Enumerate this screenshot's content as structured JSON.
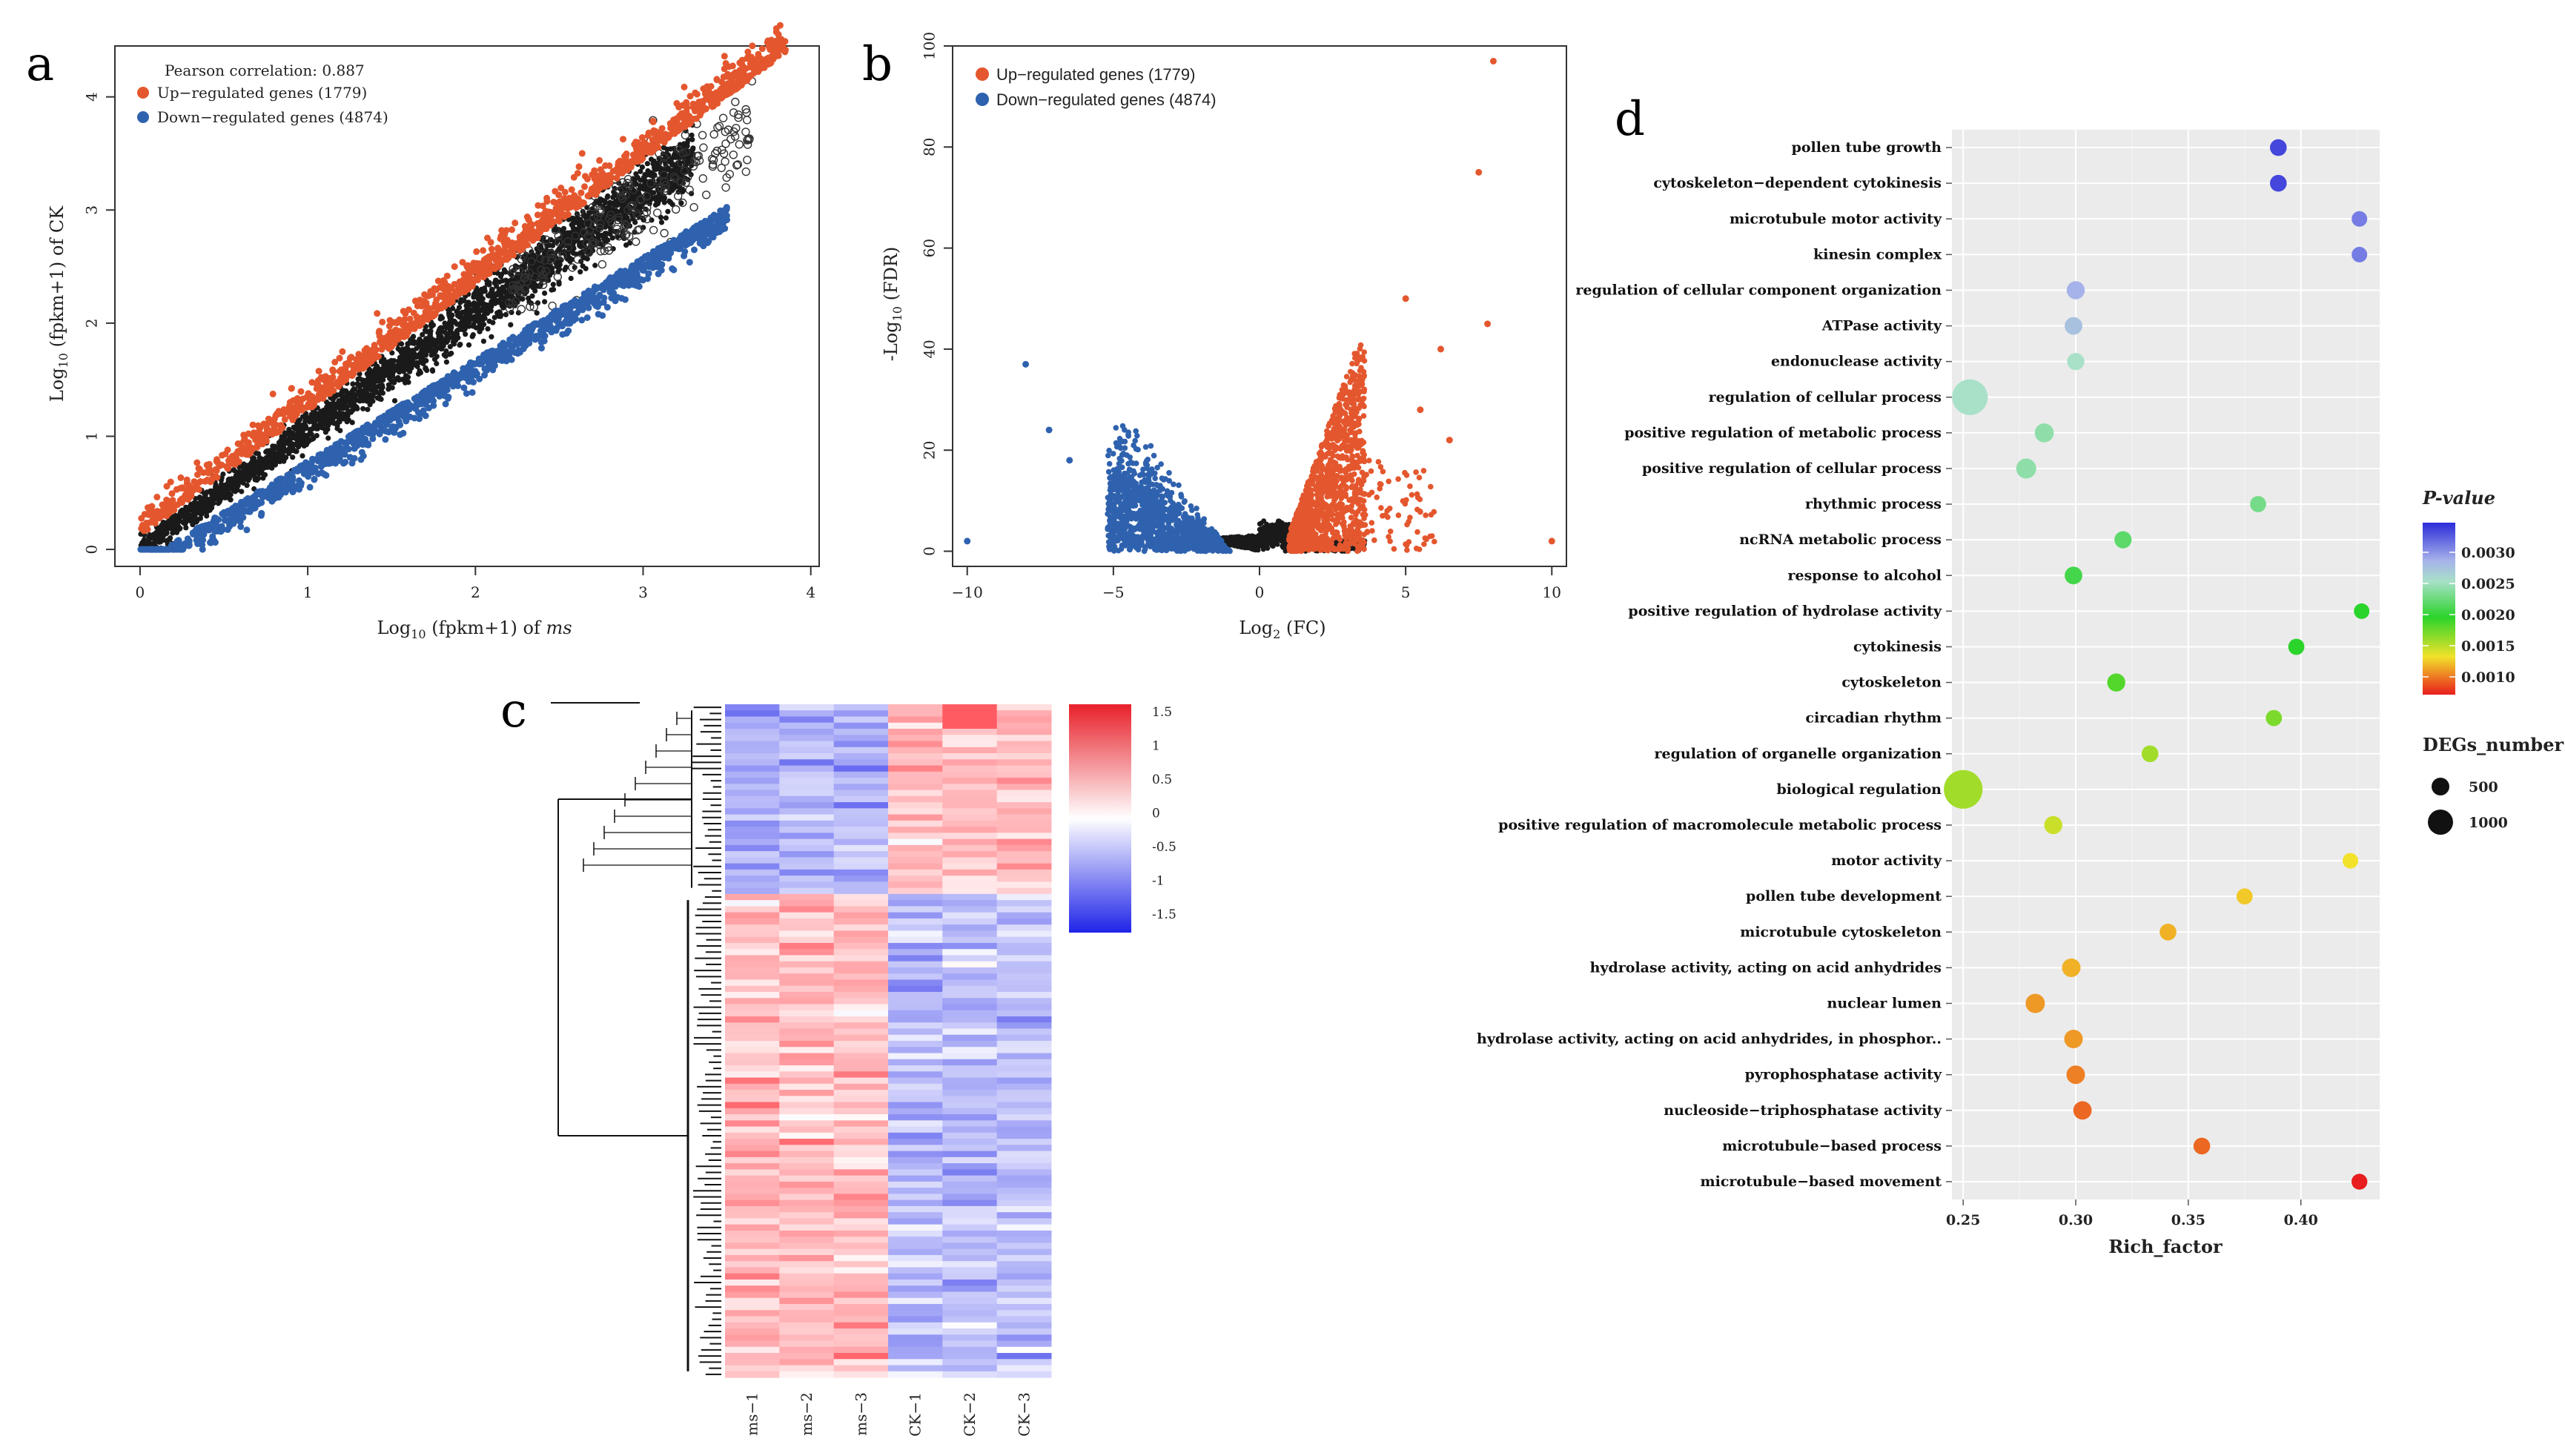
{
  "panels": {
    "a": "a",
    "b": "b",
    "c": "c",
    "d": "d"
  },
  "colors": {
    "up": "#e4572e",
    "down": "#2f62ae",
    "ns": "#1a1a1a",
    "heat_high": "#e8202a",
    "heat_mid": "#ffffff",
    "heat_low": "#1f24e8",
    "ggplot_bg": "#ebebeb"
  },
  "chart_data": [
    {
      "id": "a",
      "type": "scatter",
      "title": "",
      "xlabel_prefix": "Log",
      "xlabel_sub": "10",
      "xlabel_mid": " (fpkm+1) of ",
      "xlabel_em": "ms",
      "ylabel_prefix": "Log",
      "ylabel_sub": "10",
      "ylabel_mid": " (fpkm+1) of CK",
      "xlim": [
        -0.15,
        4.05
      ],
      "ylim": [
        -0.15,
        4.45
      ],
      "xticks": [
        0,
        1,
        2,
        3,
        4
      ],
      "yticks": [
        0,
        1,
        2,
        3,
        4
      ],
      "annotation": "Pearson correlation: 0.887",
      "legend": [
        {
          "label": "Up−regulated genes (1779)",
          "color": "#e4572e"
        },
        {
          "label": "Down−regulated genes (4874)",
          "color": "#2f62ae"
        }
      ],
      "legend_position": "top-left",
      "up_count": 1779,
      "down_count": 4874
    },
    {
      "id": "b",
      "type": "scatter",
      "title": "",
      "xlabel_prefix": "Log",
      "xlabel_sub": "2",
      "xlabel_mid": " (FC)",
      "ylabel_prefix": "-Log",
      "ylabel_sub": "10",
      "ylabel_mid": " (FDR)",
      "xlim": [
        -10.5,
        10.5
      ],
      "ylim": [
        -3,
        100
      ],
      "xticks": [
        -10,
        -5,
        0,
        5,
        10
      ],
      "yticks": [
        0,
        20,
        40,
        60,
        80,
        100
      ],
      "legend": [
        {
          "label": "Up−regulated genes (1779)",
          "color": "#e4572e"
        },
        {
          "label": "Down−regulated genes (4874)",
          "color": "#2f62ae"
        }
      ],
      "legend_position": "top-left",
      "outliers_up": [
        [
          8,
          97
        ],
        [
          7.5,
          75
        ],
        [
          7.8,
          45
        ],
        [
          5,
          50
        ],
        [
          6.2,
          40
        ],
        [
          10,
          2
        ],
        [
          6.5,
          22
        ],
        [
          5.5,
          28
        ]
      ],
      "outliers_down": [
        [
          -10,
          2
        ],
        [
          -8,
          37
        ],
        [
          -7.2,
          24
        ],
        [
          -6.5,
          18
        ]
      ]
    },
    {
      "id": "c",
      "type": "heatmap",
      "columns": [
        "ms-1",
        "ms-2",
        "ms-3",
        "CK-1",
        "CK-2",
        "CK-3"
      ],
      "scale": [
        -1.5,
        1.5
      ],
      "scale_ticks": [
        "1.5",
        "1",
        "0.5",
        "0",
        "-0.5",
        "-1",
        "-1.5"
      ],
      "row_groups": [
        {
          "name": "CK-high",
          "ms": -0.55,
          "ck": 0.45,
          "fraction": 0.28
        },
        {
          "name": "ms-high",
          "ms": 0.45,
          "ck": -0.45,
          "fraction": 0.72
        }
      ]
    },
    {
      "id": "d",
      "type": "scatter",
      "title": "",
      "xlabel": "Rich_factor",
      "xlim": [
        0.245,
        0.435
      ],
      "xticks": [
        0.25,
        0.3,
        0.35,
        0.4
      ],
      "xtick_labels": [
        "0.25",
        "0.30",
        "0.35",
        "0.40"
      ],
      "pvalue_legend_title": "P-value",
      "pvalue_ticks": [
        "0.0030",
        "0.0025",
        "0.0020",
        "0.0015",
        "0.0010"
      ],
      "size_legend_title": "DEGs_number",
      "size_legend": [
        "500",
        "1000"
      ],
      "terms": [
        {
          "term": "pollen tube growth",
          "rich": 0.39,
          "p": 0.0033,
          "n": 60
        },
        {
          "term": "cytoskeleton−dependent cytokinesis",
          "rich": 0.39,
          "p": 0.0033,
          "n": 60
        },
        {
          "term": "microtubule motor activity",
          "rich": 0.426,
          "p": 0.0031,
          "n": 40
        },
        {
          "term": "kinesin complex",
          "rich": 0.426,
          "p": 0.0031,
          "n": 40
        },
        {
          "term": "regulation of cellular component organization",
          "rich": 0.3,
          "p": 0.0029,
          "n": 90
        },
        {
          "term": "ATPase activity",
          "rich": 0.299,
          "p": 0.0028,
          "n": 80
        },
        {
          "term": "endonuclease activity",
          "rich": 0.3,
          "p": 0.0026,
          "n": 70
        },
        {
          "term": "regulation of cellular process",
          "rich": 0.253,
          "p": 0.0026,
          "n": 950
        },
        {
          "term": "positive regulation of metabolic process",
          "rich": 0.286,
          "p": 0.0025,
          "n": 110
        },
        {
          "term": "positive regulation of cellular process",
          "rich": 0.278,
          "p": 0.0025,
          "n": 140
        },
        {
          "term": "rhythmic process",
          "rich": 0.381,
          "p": 0.0024,
          "n": 50
        },
        {
          "term": "ncRNA metabolic process",
          "rich": 0.321,
          "p": 0.0023,
          "n": 70
        },
        {
          "term": "response to alcohol",
          "rich": 0.299,
          "p": 0.0022,
          "n": 80
        },
        {
          "term": "positive regulation of hydrolase activity",
          "rich": 0.427,
          "p": 0.0021,
          "n": 40
        },
        {
          "term": "cytokinesis",
          "rich": 0.398,
          "p": 0.0021,
          "n": 50
        },
        {
          "term": "cytoskeleton",
          "rich": 0.318,
          "p": 0.002,
          "n": 90
        },
        {
          "term": "circadian rhythm",
          "rich": 0.388,
          "p": 0.0019,
          "n": 50
        },
        {
          "term": "regulation of organelle organization",
          "rich": 0.333,
          "p": 0.0018,
          "n": 60
        },
        {
          "term": "biological regulation",
          "rich": 0.25,
          "p": 0.0018,
          "n": 1200
        },
        {
          "term": "positive regulation of macromolecule metabolic process",
          "rich": 0.29,
          "p": 0.0017,
          "n": 90
        },
        {
          "term": "motor activity",
          "rich": 0.422,
          "p": 0.0016,
          "n": 40
        },
        {
          "term": "pollen tube development",
          "rich": 0.375,
          "p": 0.0015,
          "n": 50
        },
        {
          "term": "microtubule cytoskeleton",
          "rich": 0.341,
          "p": 0.0014,
          "n": 60
        },
        {
          "term": "hydrolase activity, acting on acid anhydrides",
          "rich": 0.298,
          "p": 0.0014,
          "n": 100
        },
        {
          "term": "nuclear lumen",
          "rich": 0.282,
          "p": 0.0013,
          "n": 120
        },
        {
          "term": "hydrolase activity, acting on acid anhydrides, in phosphor..",
          "rich": 0.299,
          "p": 0.0013,
          "n": 100
        },
        {
          "term": "pyrophosphatase activity",
          "rich": 0.3,
          "p": 0.0012,
          "n": 100
        },
        {
          "term": "nucleoside−triphosphatase activity",
          "rich": 0.303,
          "p": 0.0011,
          "n": 95
        },
        {
          "term": "microtubule−based process",
          "rich": 0.356,
          "p": 0.0011,
          "n": 60
        },
        {
          "term": "microtubule−based movement",
          "rich": 0.426,
          "p": 0.0008,
          "n": 45
        }
      ]
    }
  ]
}
